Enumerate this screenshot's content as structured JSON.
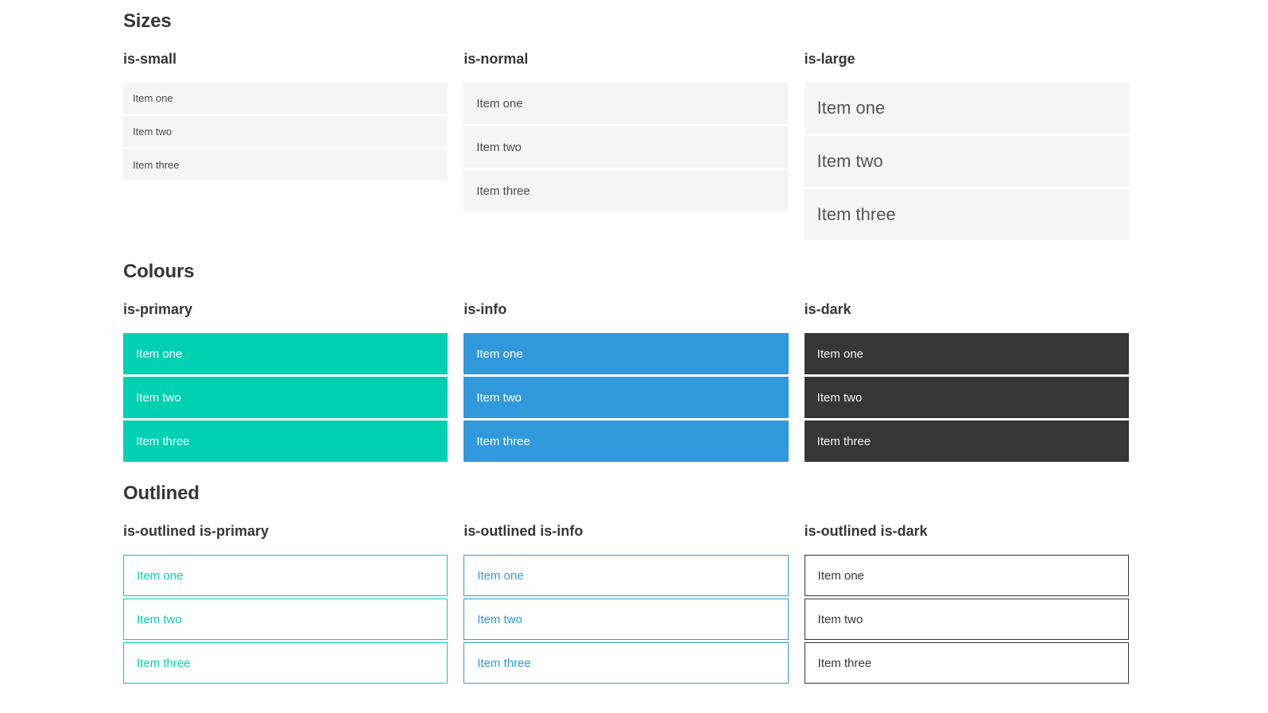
{
  "colors": {
    "page-bg": "#ffffff",
    "heading-text": "#363636",
    "item-bg": "#f5f5f5",
    "item-text": "#4a4a4a",
    "primary": "#00d1b2",
    "info": "#3298dc",
    "dark": "#363636"
  },
  "sections": [
    {
      "title": "Sizes",
      "groups": [
        {
          "label": "is-small",
          "variant": "small",
          "items": [
            "Item one",
            "Item two",
            "Item three"
          ]
        },
        {
          "label": "is-normal",
          "variant": "normal",
          "items": [
            "Item one",
            "Item two",
            "Item three"
          ]
        },
        {
          "label": "is-large",
          "variant": "large",
          "items": [
            "Item one",
            "Item two",
            "Item three"
          ]
        }
      ]
    },
    {
      "title": "Colours",
      "groups": [
        {
          "label": "is-primary",
          "variant": "primary",
          "items": [
            "Item one",
            "Item two",
            "Item three"
          ]
        },
        {
          "label": "is-info",
          "variant": "info",
          "items": [
            "Item one",
            "Item two",
            "Item three"
          ]
        },
        {
          "label": "is-dark",
          "variant": "dark",
          "items": [
            "Item one",
            "Item two",
            "Item three"
          ]
        }
      ]
    },
    {
      "title": "Outlined",
      "groups": [
        {
          "label": "is-outlined is-primary",
          "variant": "outlined-primary",
          "items": [
            "Item one",
            "Item two",
            "Item three"
          ]
        },
        {
          "label": "is-outlined is-info",
          "variant": "outlined-info",
          "items": [
            "Item one",
            "Item two",
            "Item three"
          ]
        },
        {
          "label": "is-outlined is-dark",
          "variant": "outlined-dark",
          "items": [
            "Item one",
            "Item two",
            "Item three"
          ]
        }
      ]
    }
  ]
}
